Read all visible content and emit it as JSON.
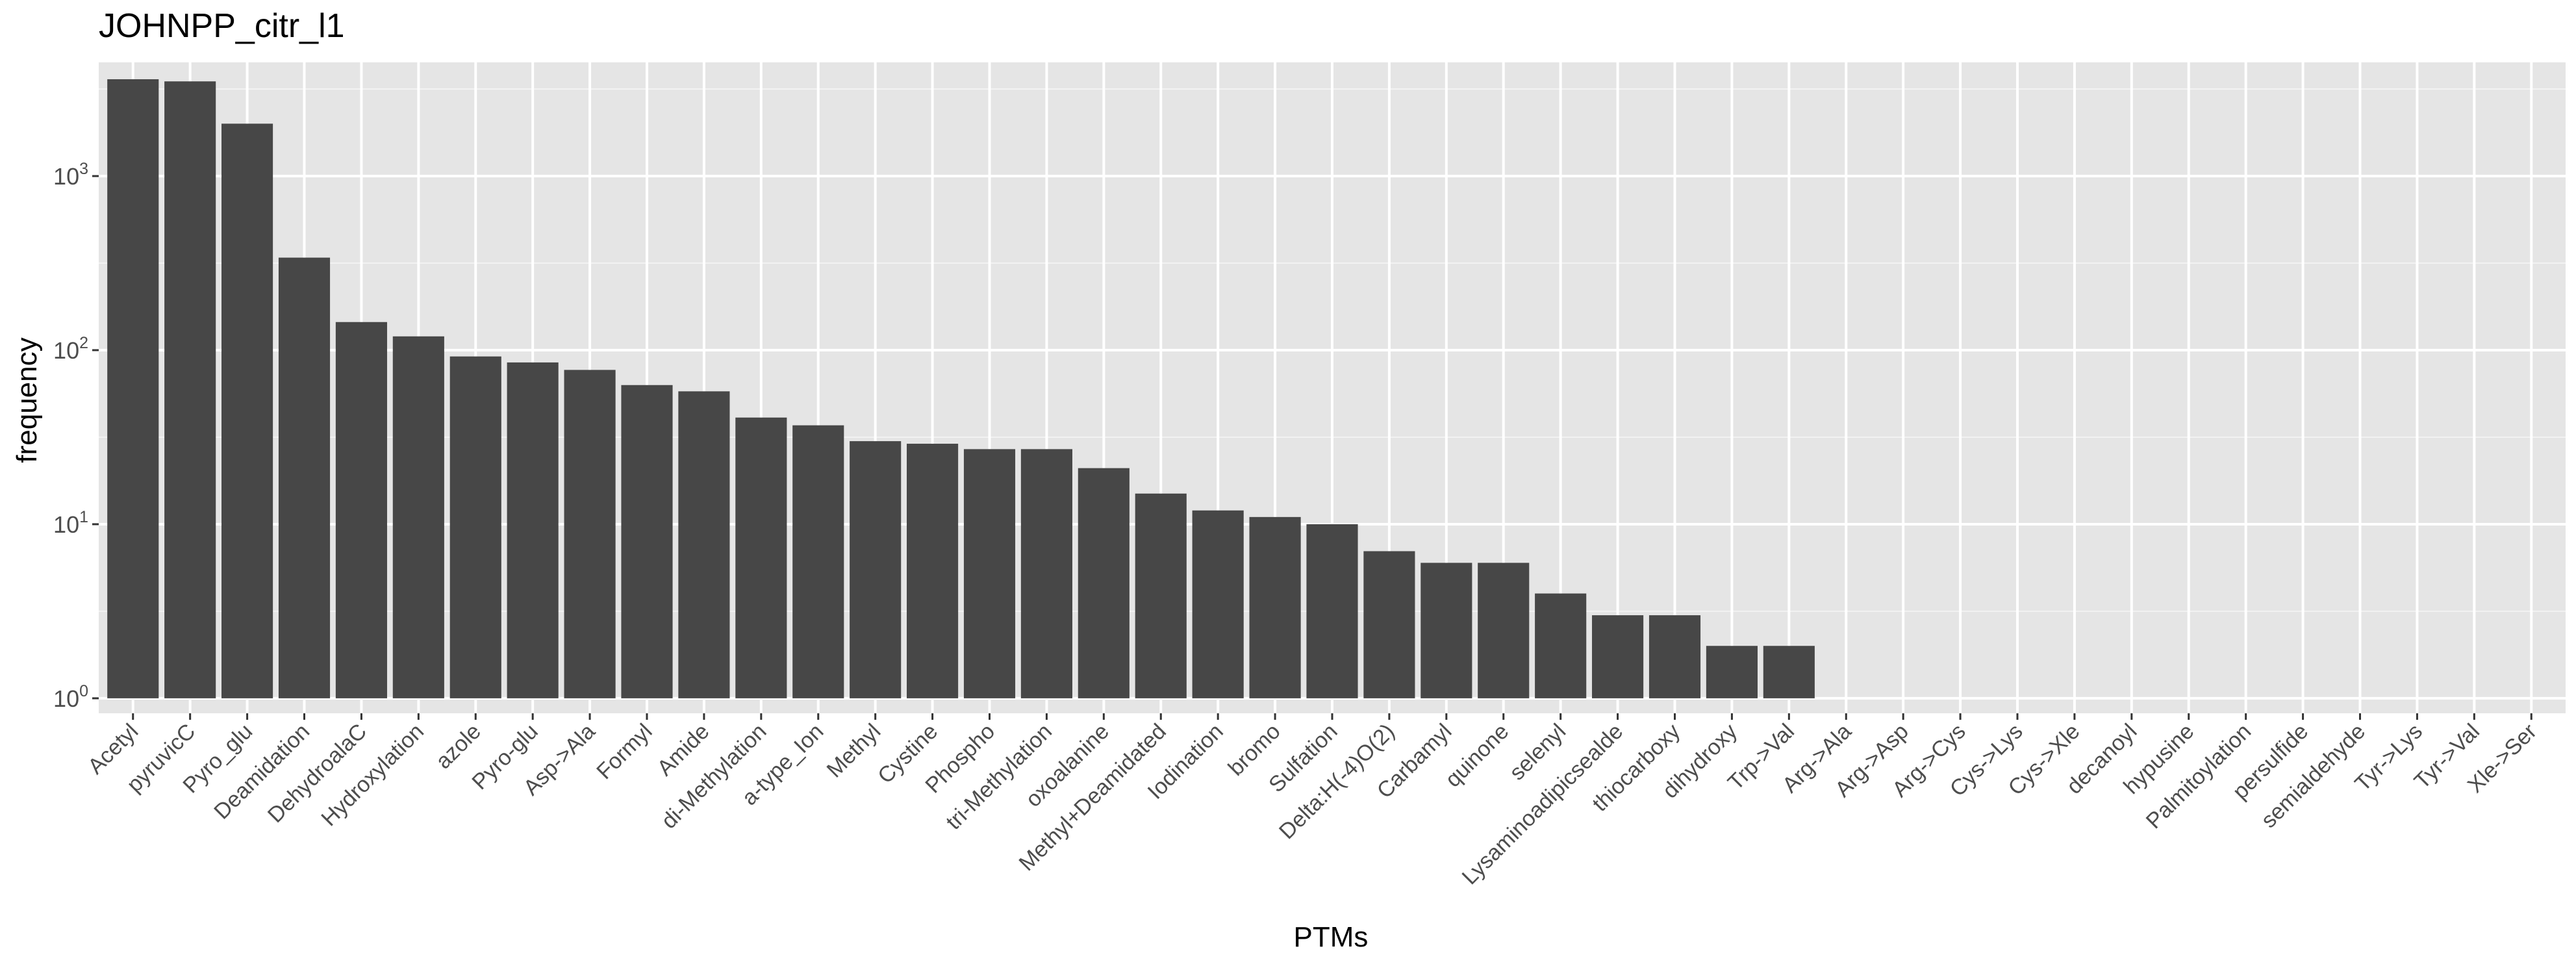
{
  "chart_data": {
    "type": "bar",
    "title": "JOHNPP_citr_l1",
    "xlabel": "PTMs",
    "ylabel": "frequency",
    "y_scale": "log10",
    "ylim": [
      0.82,
      4500
    ],
    "y_ticks": [
      {
        "value": 1,
        "base": "10",
        "exp": "0"
      },
      {
        "value": 10,
        "base": "10",
        "exp": "1"
      },
      {
        "value": 100,
        "base": "10",
        "exp": "2"
      },
      {
        "value": 1000,
        "base": "10",
        "exp": "3"
      }
    ],
    "grid": true,
    "bar_color": "#474747",
    "panel_color": "#e5e5e5",
    "categories": [
      "Acetyl",
      "pyruvicC",
      "Pyro_glu",
      "Deamidation",
      "DehydroalaC",
      "Hydroxylation",
      "azole",
      "Pyro-glu",
      "Asp->Ala",
      "Formyl",
      "Amide",
      "di-Methylation",
      "a-type_Ion",
      "Methyl",
      "Cystine",
      "Phospho",
      "tri-Methylation",
      "oxoalanine",
      "Methyl+Deamidated",
      "Iodination",
      "bromo",
      "Sulfation",
      "Delta:H(-4)O(2)",
      "Carbamyl",
      "quinone",
      "selenyl",
      "Lysaminoadipicsealde",
      "thiocarboxy",
      "dihydroxy",
      "Trp->Val",
      "Arg->Ala",
      "Arg->Asp",
      "Arg->Cys",
      "Cys->Lys",
      "Cys->Xle",
      "decanoyl",
      "hypusine",
      "Palmitoylation",
      "persulfide",
      "semialdehyde",
      "Tyr->Lys",
      "Tyr->Val",
      "Xle->Ser"
    ],
    "values": [
      3600,
      3500,
      2000,
      340,
      145,
      120,
      92,
      85,
      77,
      63,
      58,
      41,
      37,
      30,
      29,
      27,
      27,
      21,
      15,
      12,
      11,
      10,
      7,
      6,
      6,
      4,
      3,
      3,
      2,
      2,
      1,
      1,
      1,
      1,
      1,
      1,
      1,
      1,
      1,
      1,
      1,
      1,
      1
    ]
  }
}
